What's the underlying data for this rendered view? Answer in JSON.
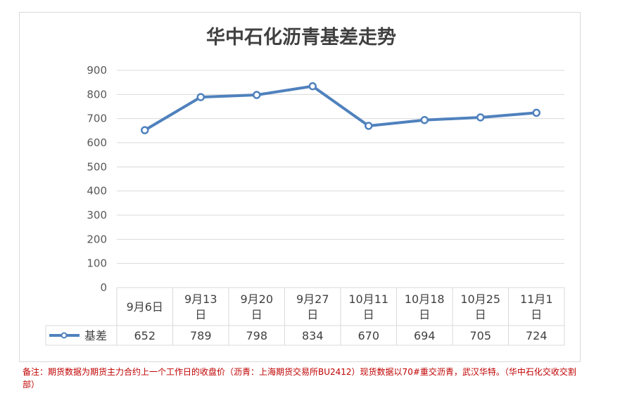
{
  "chart_data": {
    "type": "line",
    "title": "华中石化沥青基差走势",
    "categories": [
      "9月6日",
      "9月13日",
      "9月20日",
      "9月27日",
      "10月11日",
      "10月18日",
      "10月25日",
      "11月1日"
    ],
    "series": [
      {
        "name": "基差",
        "values": [
          652,
          789,
          798,
          834,
          670,
          694,
          705,
          724
        ]
      }
    ],
    "ylim": [
      0,
      900
    ],
    "yticks": [
      0,
      100,
      200,
      300,
      400,
      500,
      600,
      700,
      800,
      900
    ],
    "grid": true,
    "legend": "data-table",
    "colors": {
      "series": "#4f81bd",
      "marker_fill": "#ffffff",
      "grid": "#d9d9d9"
    }
  },
  "footnote": "备注：期货数据为期货主力合约上一个工作日的收盘价（沥青：上海期货交易所BU2412）现货数据以70#重交沥青，武汉华特。（华中石化交收交割部）"
}
